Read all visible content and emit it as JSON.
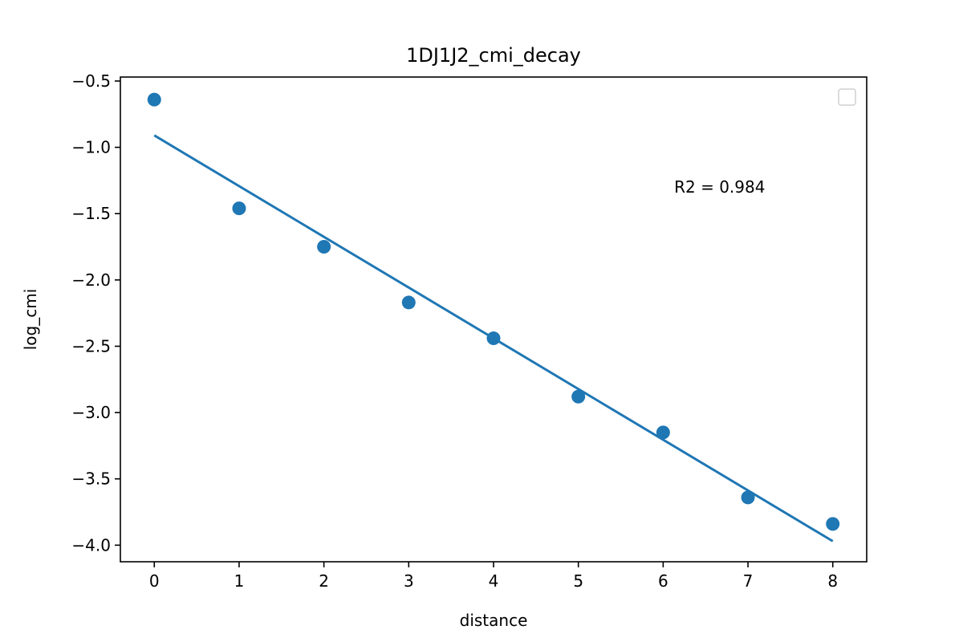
{
  "chart_data": {
    "type": "scatter",
    "title": "1DJ1J2_cmi_decay",
    "xlabel": "distance",
    "ylabel": "log_cmi",
    "xlim": [
      -0.4,
      8.4
    ],
    "ylim": [
      -4.125,
      -0.47
    ],
    "xticks": [
      0,
      1,
      2,
      3,
      4,
      5,
      6,
      7,
      8
    ],
    "xtick_labels": [
      "0",
      "1",
      "2",
      "3",
      "4",
      "5",
      "6",
      "7",
      "8"
    ],
    "yticks": [
      -0.5,
      -1.0,
      -1.5,
      -2.0,
      -2.5,
      -3.0,
      -3.5,
      -4.0
    ],
    "ytick_labels": [
      "−0.5",
      "−1.0",
      "−1.5",
      "−2.0",
      "−2.5",
      "−3.0",
      "−3.5",
      "−4.0"
    ],
    "grid": false,
    "legend": {
      "placement": "top-right",
      "entries": []
    },
    "series": [
      {
        "kind": "scatter",
        "x": [
          0,
          1,
          2,
          3,
          4,
          5,
          6,
          7,
          8
        ],
        "y": [
          -0.64,
          -1.46,
          -1.75,
          -2.17,
          -2.44,
          -2.88,
          -3.15,
          -3.64,
          -3.84
        ],
        "color": "#1f77b4"
      },
      {
        "kind": "line",
        "x": [
          0,
          8
        ],
        "y": [
          -0.91,
          -3.97
        ],
        "color": "#1f77b4"
      }
    ],
    "annotations": [
      {
        "text": "R2 = 0.984",
        "x": 6.13,
        "y": -1.3
      }
    ]
  }
}
